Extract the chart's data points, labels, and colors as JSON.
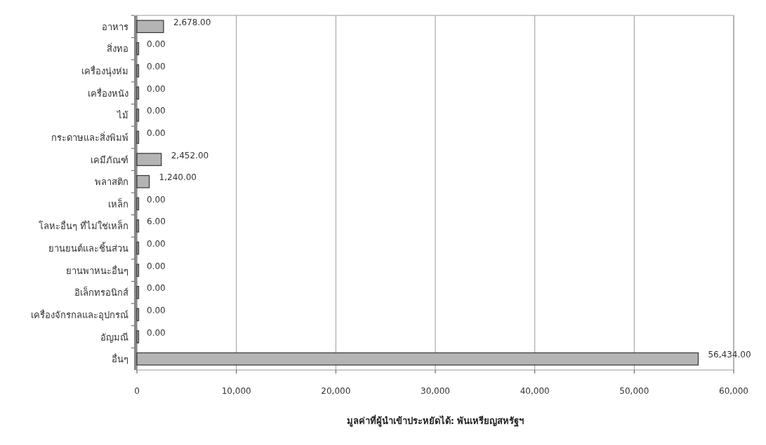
{
  "chart_data": {
    "type": "bar",
    "orientation": "horizontal",
    "xlabel": "มูลค่าที่ผู้นำเข้าประหยัดได้: พันเหรียญสหรัฐฯ",
    "categories": [
      "อาหาร",
      "สิ่งทอ",
      "เครื่องนุ่งห่ม",
      "เครื่องหนัง",
      "ไม้",
      "กระดาษและสิ่งพิมพ์",
      "เคมีภัณฑ์",
      "พลาสติก",
      "เหล็ก",
      "โลหะอื่นๆ ที่ไม่ใช่เหล็ก",
      "ยานยนต์และชิ้นส่วน",
      "ยานพาหนะอื่นๆ",
      "อิเล็กทรอนิกส์",
      "เครื่องจักรกลและอุปกรณ์",
      "อัญมณี",
      "อื่นๆ"
    ],
    "values": [
      2678,
      0,
      0,
      0,
      0,
      0,
      2452,
      1240,
      0,
      6,
      0,
      0,
      0,
      0,
      0,
      56434
    ],
    "value_labels": [
      "2,678.00",
      "0.00",
      "0.00",
      "0.00",
      "0.00",
      "0.00",
      "2,452.00",
      "1,240.00",
      "0.00",
      "6.00",
      "0.00",
      "0.00",
      "0.00",
      "0.00",
      "0.00",
      "56,434.00"
    ],
    "color": "#b4b4b4",
    "xlim": [
      0,
      60000
    ],
    "xticks": [
      {
        "value": 0,
        "label": "0"
      },
      {
        "value": 10000,
        "label": "10,000"
      },
      {
        "value": 20000,
        "label": "20,000"
      },
      {
        "value": 30000,
        "label": "30,000"
      },
      {
        "value": 40000,
        "label": "40,000"
      },
      {
        "value": 50000,
        "label": "50,000"
      },
      {
        "value": 60000,
        "label": "60,000"
      }
    ],
    "grid": "x"
  }
}
